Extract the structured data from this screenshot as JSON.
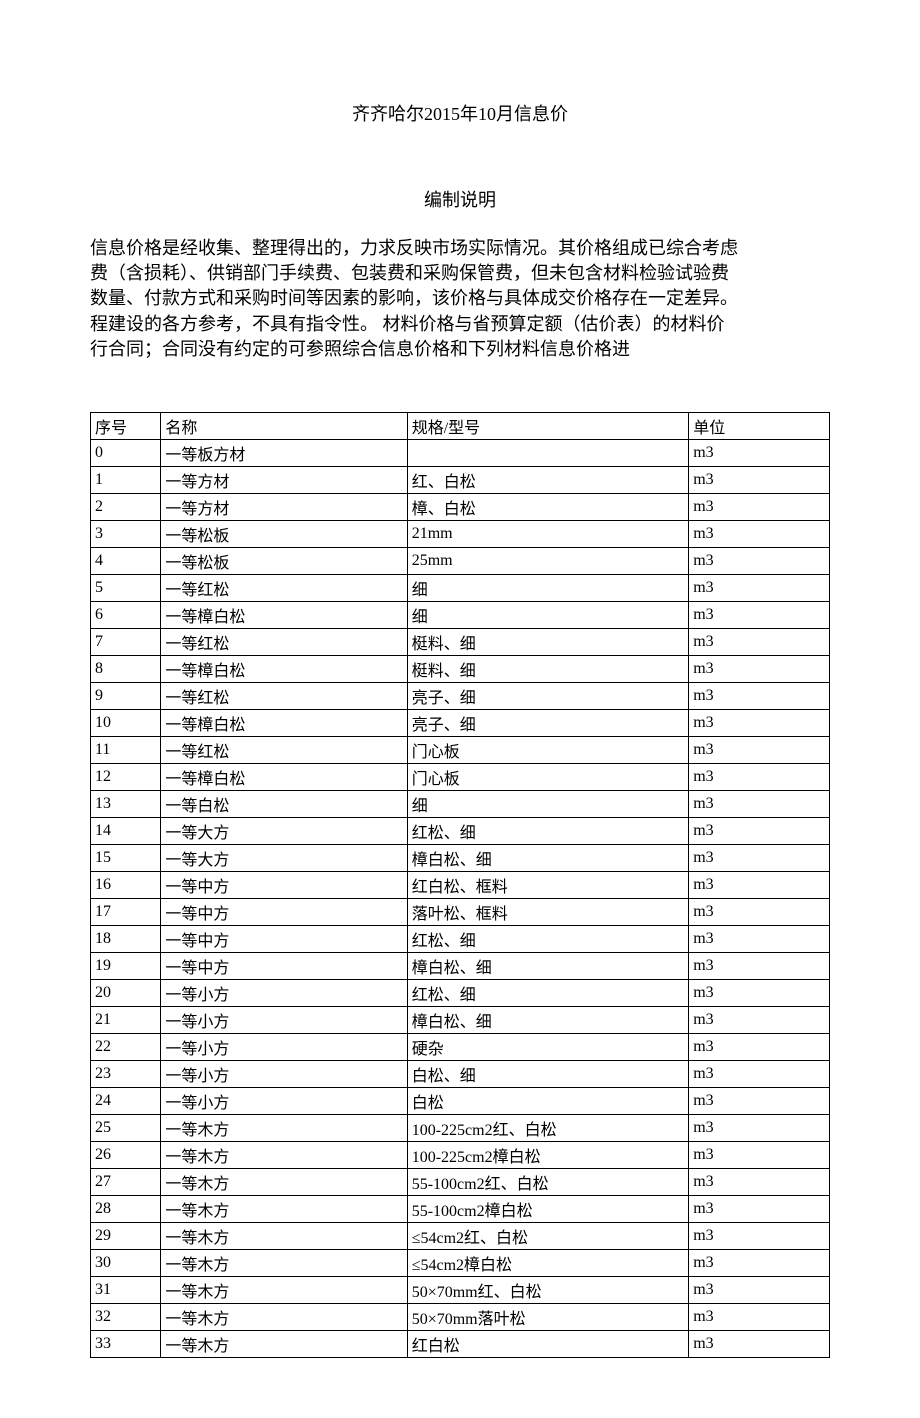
{
  "title": "齐齐哈尔2015年10月信息价",
  "subtitle": "编制说明",
  "description_lines": [
    "信息价格是经收集、整理得出的，力求反映市场实际情况。其价格组成已综合考虑",
    "费（含损耗）、供销部门手续费、包装费和采购保管费，但未包含材料检验试验费",
    "数量、付款方式和采购时间等因素的影响，该价格与具体成交价格存在一定差异。",
    "程建设的各方参考，不具有指令性。 材料价格与省预算定额（估价表）的材料价",
    "行合同；合同没有约定的可参照综合信息价格和下列材料信息价格进"
  ],
  "table": {
    "columns": [
      "序号",
      "名称",
      "规格/型号",
      "单位"
    ],
    "rows": [
      [
        "0",
        "一等板方材",
        "",
        "m3"
      ],
      [
        "1",
        "一等方材",
        "红、白松",
        "m3"
      ],
      [
        "2",
        "一等方材",
        "樟、白松",
        "m3"
      ],
      [
        "3",
        "一等松板",
        "21mm",
        "m3"
      ],
      [
        "4",
        "一等松板",
        "25mm",
        "m3"
      ],
      [
        "5",
        "一等红松",
        "细",
        "m3"
      ],
      [
        "6",
        "一等樟白松",
        "细",
        "m3"
      ],
      [
        "7",
        "一等红松",
        "梃料、细",
        "m3"
      ],
      [
        "8",
        "一等樟白松",
        "梃料、细",
        "m3"
      ],
      [
        "9",
        "一等红松",
        "亮子、细",
        "m3"
      ],
      [
        "10",
        "一等樟白松",
        "亮子、细",
        "m3"
      ],
      [
        "11",
        "一等红松",
        "门心板",
        "m3"
      ],
      [
        "12",
        "一等樟白松",
        "门心板",
        "m3"
      ],
      [
        "13",
        "一等白松",
        "细",
        "m3"
      ],
      [
        "14",
        "一等大方",
        "红松、细",
        "m3"
      ],
      [
        "15",
        "一等大方",
        "樟白松、细",
        "m3"
      ],
      [
        "16",
        "一等中方",
        "红白松、框料",
        "m3"
      ],
      [
        "17",
        "一等中方",
        "落叶松、框料",
        "m3"
      ],
      [
        "18",
        "一等中方",
        "红松、细",
        "m3"
      ],
      [
        "19",
        "一等中方",
        "樟白松、细",
        "m3"
      ],
      [
        "20",
        "一等小方",
        "红松、细",
        "m3"
      ],
      [
        "21",
        "一等小方",
        "樟白松、细",
        "m3"
      ],
      [
        "22",
        "一等小方",
        "硬杂",
        "m3"
      ],
      [
        "23",
        "一等小方",
        "白松、细",
        "m3"
      ],
      [
        "24",
        "一等小方",
        "白松",
        "m3"
      ],
      [
        "25",
        "一等木方",
        "100-225cm2红、白松",
        "m3"
      ],
      [
        "26",
        "一等木方",
        "100-225cm2樟白松",
        "m3"
      ],
      [
        "27",
        "一等木方",
        "55-100cm2红、白松",
        "m3"
      ],
      [
        "28",
        "一等木方",
        "55-100cm2樟白松",
        "m3"
      ],
      [
        "29",
        "一等木方",
        "≤54cm2红、白松",
        "m3"
      ],
      [
        "30",
        "一等木方",
        "≤54cm2樟白松",
        "m3"
      ],
      [
        "31",
        "一等木方",
        "50×70mm红、白松",
        "m3"
      ],
      [
        "32",
        "一等木方",
        "50×70mm落叶松",
        "m3"
      ],
      [
        "33",
        "一等木方",
        "红白松",
        "m3"
      ]
    ]
  }
}
